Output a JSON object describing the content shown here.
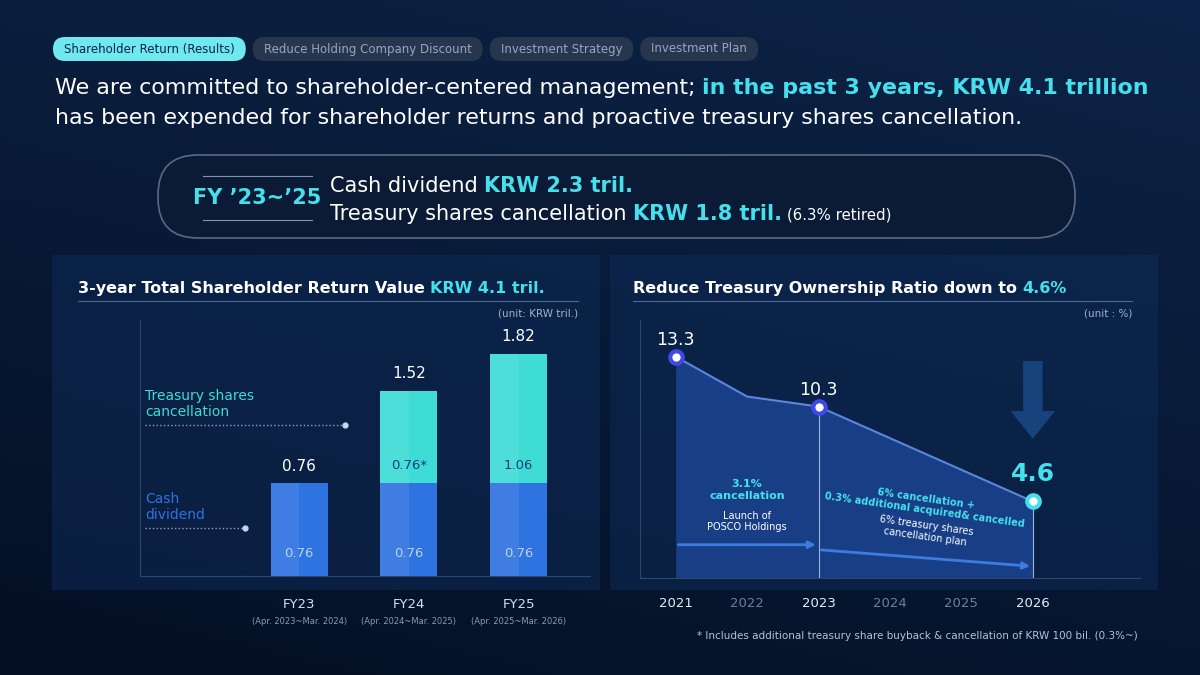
{
  "tabs": [
    "Shareholder Return (Results)",
    "Reduce Holding Company Discount",
    "Investment Strategy",
    "Investment Plan"
  ],
  "headline": [
    [
      "We are committed to shareholder-centered management; ",
      "in the past 3 years, KRW 4.1 trillion"
    ],
    [
      "has been expended for shareholder returns and proactive treasury shares cancellation."
    ]
  ],
  "summary": {
    "label": "FY ’23~’25",
    "lines": [
      [
        "Cash dividend ",
        "KRW 2.3 tril."
      ],
      [
        "Treasury shares cancellation ",
        "KRW 1.8 tril.",
        " (6.3% retired)"
      ]
    ]
  },
  "chart_data": [
    {
      "type": "bar",
      "stacked": true,
      "title": [
        "3-year Total Shareholder Return Value ",
        "KRW 4.1 tril."
      ],
      "subtitle": "(unit: KRW tril.)",
      "categories": [
        "FY23",
        "FY24",
        "FY25"
      ],
      "category_notes": [
        "(Apr. 2023~Mar. 2024)",
        "(Apr. 2024~Mar. 2025)",
        "(Apr. 2025~Mar. 2026)"
      ],
      "series": [
        {
          "name": "Cash\ndividend",
          "color": "#2f73e0",
          "values": [
            0.76,
            0.76,
            0.76
          ]
        },
        {
          "name": "Treasury shares\ncancellation",
          "color": "#3fdcd6",
          "values": [
            null,
            0.76,
            1.06
          ],
          "value_labels": [
            null,
            "0.76*",
            "1.06"
          ]
        }
      ],
      "totals": [
        0.76,
        1.52,
        1.82
      ],
      "ylim": [
        0,
        2.1
      ],
      "yticks": [],
      "data_labels": true,
      "tick_labels": "x"
    },
    {
      "type": "area",
      "title": [
        "Reduce Treasury Ownership Ratio down to ",
        "4.6%"
      ],
      "subtitle": "(unit : %)",
      "x": [
        2021,
        2022,
        2023,
        2026
      ],
      "values": [
        13.3,
        10.9,
        10.3,
        4.6
      ],
      "value_labels": [
        "13.3",
        null,
        "10.3",
        "4.6"
      ],
      "color": "#5a86dc",
      "marker": "o",
      "xlim": [
        2020.5,
        2027.5
      ],
      "xticks": [
        2021,
        2022,
        2023,
        2024,
        2025,
        2026
      ],
      "ylim": [
        0,
        15.5
      ],
      "yticks": [],
      "data_labels": true,
      "tick_labels": "x",
      "annotations": [
        "3.1%\ncancellation",
        "Launch of\nPOSCO Holdings",
        "6% cancellation +\n0.3% additional acquired& cancelled",
        "6% treasury shares\ncancellation plan"
      ]
    }
  ],
  "footnote": "* Includes additional treasury share buyback & cancellation of KRW 100 bil. (0.3%~)"
}
